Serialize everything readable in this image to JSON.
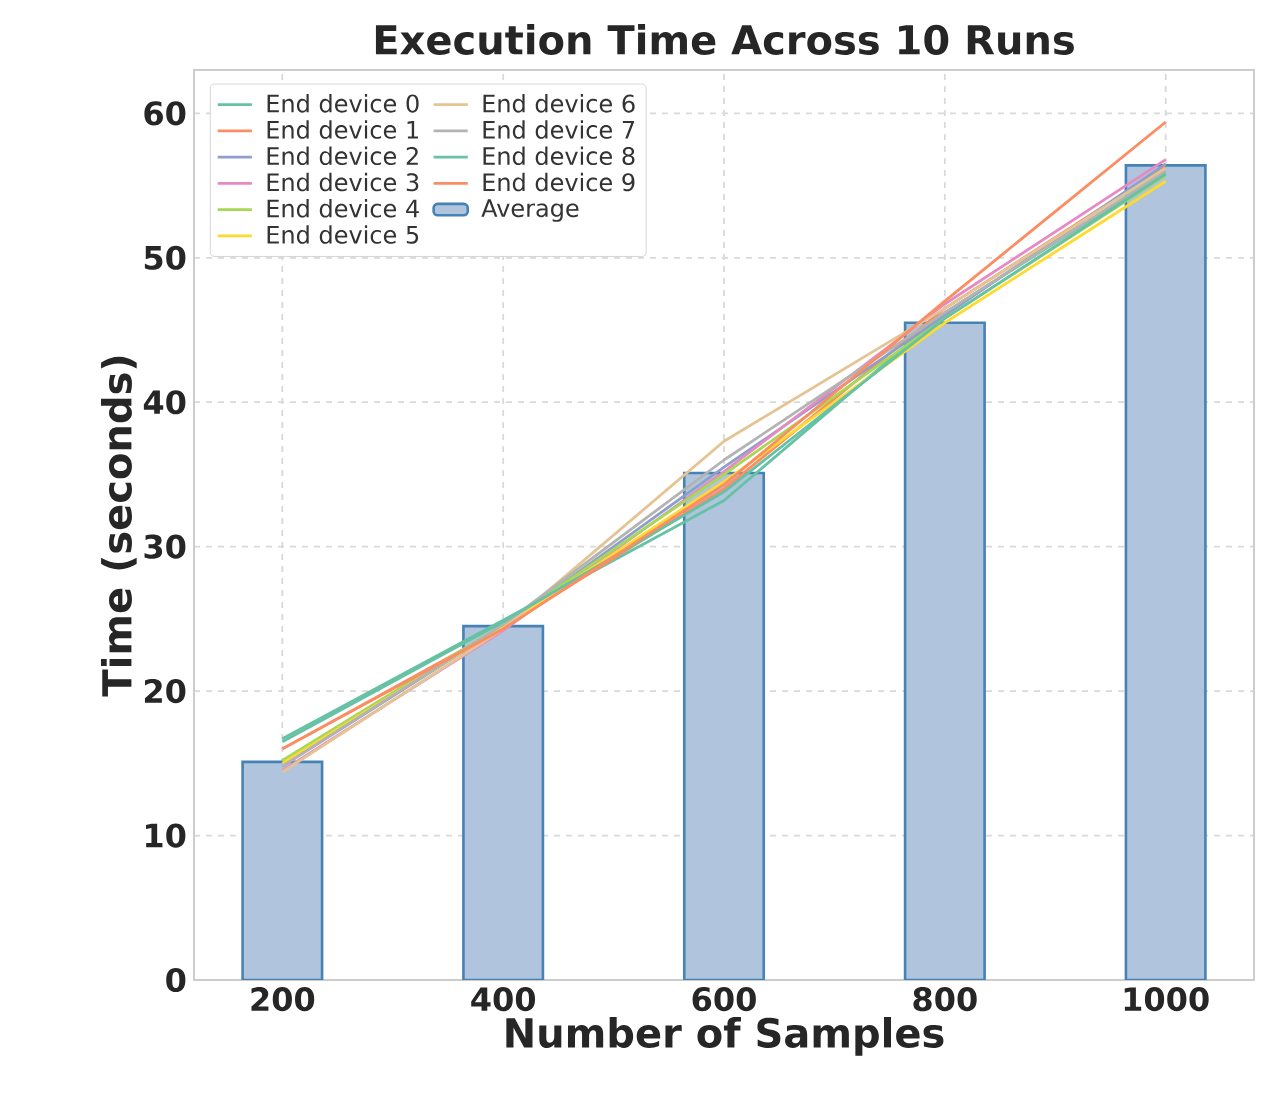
{
  "chart_data": {
    "type": "line",
    "title": "Execution Time Across 10 Runs",
    "xlabel": "Number of Samples",
    "ylabel": "Time (seconds)",
    "x": [
      200,
      400,
      600,
      800,
      1000
    ],
    "xlim": [
      120,
      1080
    ],
    "ylim": [
      0,
      63
    ],
    "xticks": [
      200,
      400,
      600,
      800,
      1000
    ],
    "yticks": [
      0,
      10,
      20,
      30,
      40,
      50,
      60
    ],
    "grid": true,
    "legend": "top left",
    "line_style": "solid",
    "marker": "none",
    "series": [
      {
        "name": "End device 0",
        "color": "#66c2a5",
        "values": [
          16.7,
          24.9,
          33.2,
          46.2,
          55.9
        ]
      },
      {
        "name": "End device 1",
        "color": "#fc8d62",
        "values": [
          16.0,
          24.4,
          34.0,
          46.5,
          56.3
        ]
      },
      {
        "name": "End device 2",
        "color": "#8da0cb",
        "values": [
          14.8,
          24.5,
          35.5,
          46.0,
          56.5
        ]
      },
      {
        "name": "End device 3",
        "color": "#e78ac3",
        "values": [
          14.5,
          24.2,
          35.2,
          46.8,
          56.8
        ]
      },
      {
        "name": "End device 4",
        "color": "#a6d854",
        "values": [
          15.2,
          24.6,
          35.0,
          45.8,
          55.7
        ]
      },
      {
        "name": "End device 5",
        "color": "#ffd92f",
        "values": [
          15.0,
          24.5,
          34.5,
          45.5,
          55.3
        ]
      },
      {
        "name": "End device 6",
        "color": "#e5c494",
        "values": [
          14.4,
          24.3,
          37.3,
          46.5,
          56.2
        ]
      },
      {
        "name": "End device 7",
        "color": "#b3b3b3",
        "values": [
          14.8,
          24.6,
          36.0,
          46.2,
          56.0
        ]
      },
      {
        "name": "End device 8",
        "color": "#66c2a5",
        "values": [
          16.5,
          24.8,
          33.8,
          45.8,
          55.8
        ]
      },
      {
        "name": "End device 9",
        "color": "#fc8d62",
        "values": [
          16.0,
          24.3,
          34.3,
          47.0,
          59.4
        ]
      },
      {
        "name": "Average",
        "type": "bar",
        "color": "#b0c4de",
        "values": [
          15.1,
          24.5,
          35.1,
          45.5,
          56.4
        ]
      }
    ]
  }
}
